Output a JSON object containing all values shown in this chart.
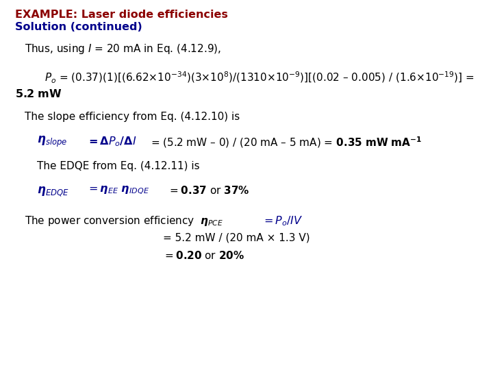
{
  "bg_color": "#ffffff",
  "title1": "EXAMPLE: Laser diode efficiencies",
  "title2": "Solution (continued)",
  "title1_color": "#8B0000",
  "title2_color": "#00008B",
  "body_color": "#000000",
  "blue_color": "#00008B",
  "en_dash": "–",
  "times": "×"
}
